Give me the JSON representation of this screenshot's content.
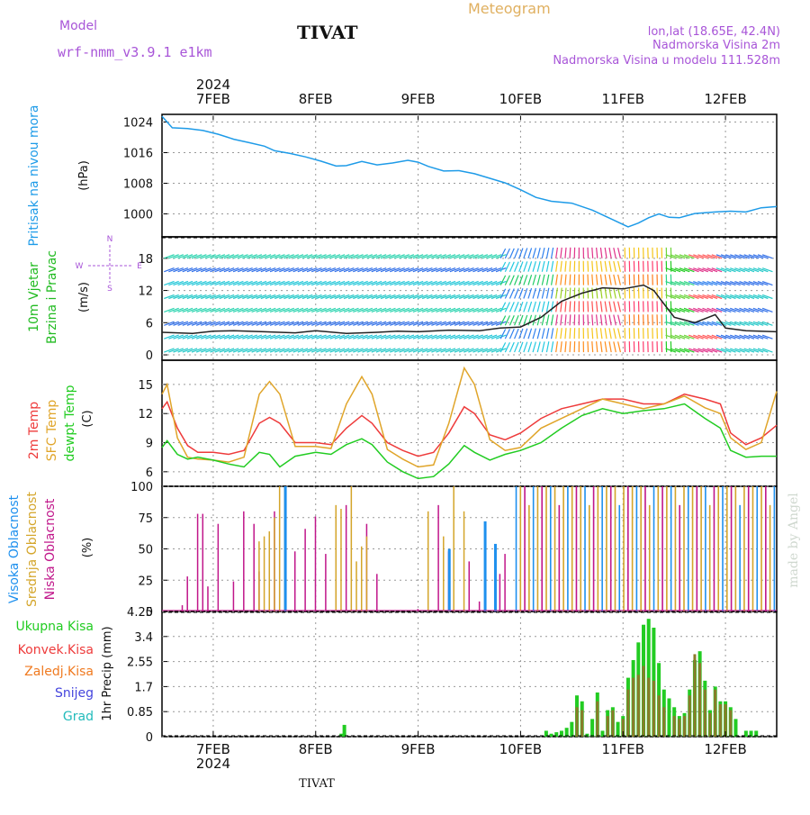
{
  "header": {
    "model_label": "Model",
    "model_name": "wrf-nmm_v3.9.1 e1km",
    "station": "TIVAT",
    "product": "Meteogram",
    "coords": "lon,lat (18.65E, 42.4N)",
    "elevation": "Nadmorska Visina 2m",
    "model_elevation": "Nadmorska Visina u modelu 111.528m"
  },
  "footer": {
    "station": "TIVAT",
    "credit": "made by Angel"
  },
  "colors": {
    "pressure": "#1e9be8",
    "temp2m": "#ee3b3b",
    "sfc": "#e0a52a",
    "dewpt": "#22cc22",
    "high_cloud": "#1e90ee",
    "mid_cloud": "#d4a52a",
    "low_cloud": "#c0168a",
    "total_precip": "#22cc22",
    "conv_precip": "#ee3b3b",
    "frozen_precip": "#f07a20",
    "snow": "#4444dd",
    "hail": "#22bbbb",
    "label_purple": "#a855d8",
    "grid": "#999999"
  },
  "chart_data": [
    {
      "type": "line",
      "panel": "pressure",
      "ylabel_left": "Pritisak na nivou mora",
      "unit": "(hPa)",
      "yticks": [
        "1024",
        "1016",
        "1008",
        "1000"
      ],
      "ylim": [
        994,
        1026
      ],
      "x_day_range": [
        6.5,
        12.5
      ],
      "series": [
        {
          "x": [
            6.5,
            6.6,
            6.75,
            6.9,
            7.05,
            7.2,
            7.35,
            7.5,
            7.6,
            7.75,
            7.9,
            8.05,
            8.2,
            8.3,
            8.45,
            8.6,
            8.75,
            8.9,
            9.0,
            9.1,
            9.25,
            9.4,
            9.55,
            9.7,
            9.85,
            10.0,
            10.15,
            10.3,
            10.5,
            10.7,
            10.9,
            11.05,
            11.15,
            11.25,
            11.35,
            11.45,
            11.55,
            11.7,
            11.9,
            12.05,
            12.2,
            12.35,
            12.5
          ],
          "values": [
            1025.5,
            1022.5,
            1022.3,
            1021.8,
            1020.8,
            1019.5,
            1018.6,
            1017.7,
            1016.5,
            1015.8,
            1014.9,
            1013.8,
            1012.5,
            1012.6,
            1013.7,
            1012.8,
            1013.3,
            1014.0,
            1013.5,
            1012.4,
            1011.2,
            1011.3,
            1010.5,
            1009.3,
            1008.1,
            1006.3,
            1004.3,
            1003.3,
            1002.8,
            1001.0,
            998.5,
            996.6,
            997.6,
            999.0,
            1000.0,
            999.1,
            999.0,
            1000.1,
            1000.5,
            1000.7,
            1000.5,
            1001.6,
            1001.9
          ]
        }
      ]
    },
    {
      "type": "barbs",
      "panel": "wind",
      "ylabel_left": [
        "10m Vjetar",
        "Brzina i Pravac"
      ],
      "unit": "(m/s)",
      "yticks": [
        "18",
        "12",
        "6",
        "0"
      ],
      "ylim": [
        -1,
        22
      ],
      "compass": {
        "N": "N",
        "S": "S",
        "W": "W",
        "E": "E"
      },
      "speed_series": {
        "x": [
          6.5,
          6.8,
          7.0,
          7.2,
          7.5,
          7.8,
          8.0,
          8.3,
          8.6,
          8.8,
          9.0,
          9.3,
          9.6,
          9.8,
          10.0,
          10.2,
          10.4,
          10.6,
          10.8,
          11.0,
          11.2,
          11.3,
          11.4,
          11.5,
          11.7,
          11.9,
          12.0,
          12.2,
          12.5
        ],
        "values": [
          4.2,
          4.0,
          4.4,
          4.5,
          4.3,
          4.1,
          4.5,
          4.0,
          4.2,
          4.4,
          4.3,
          4.6,
          4.5,
          5.0,
          5.2,
          7.0,
          10.0,
          11.5,
          12.5,
          12.3,
          13.0,
          12.0,
          9.5,
          7.0,
          6.0,
          7.5,
          5.0,
          4.5,
          4.3
        ]
      }
    },
    {
      "type": "line",
      "panel": "temperature",
      "ylabel_left": [
        "2m Temp",
        "SFC Temp",
        "dewpt Temp"
      ],
      "unit": "(C)",
      "yticks": [
        "15",
        "12",
        "9",
        "6"
      ],
      "ylim": [
        4.5,
        17.5
      ],
      "series": [
        {
          "name": "2m Temp",
          "x": [
            6.5,
            6.55,
            6.65,
            6.75,
            6.85,
            7.0,
            7.15,
            7.3,
            7.45,
            7.55,
            7.65,
            7.8,
            8.0,
            8.15,
            8.3,
            8.45,
            8.55,
            8.7,
            8.85,
            9.0,
            9.15,
            9.3,
            9.45,
            9.55,
            9.7,
            9.85,
            10.0,
            10.2,
            10.4,
            10.6,
            10.8,
            11.0,
            11.2,
            11.4,
            11.6,
            11.8,
            11.95,
            12.05,
            12.2,
            12.35,
            12.5
          ],
          "values": [
            12.5,
            13.2,
            10.5,
            8.7,
            8.0,
            8.0,
            7.8,
            8.2,
            11.0,
            11.6,
            11.0,
            9.0,
            9.0,
            8.8,
            10.5,
            11.8,
            11.0,
            9.0,
            8.2,
            7.6,
            8.0,
            10.0,
            12.7,
            12.0,
            9.8,
            9.3,
            10.0,
            11.5,
            12.5,
            13.0,
            13.5,
            13.5,
            13.0,
            13.0,
            14.0,
            13.5,
            13.0,
            10.0,
            8.8,
            9.5,
            10.8
          ]
        },
        {
          "name": "SFC Temp",
          "x": [
            6.5,
            6.55,
            6.65,
            6.75,
            6.85,
            7.0,
            7.15,
            7.3,
            7.45,
            7.55,
            7.65,
            7.8,
            8.0,
            8.15,
            8.3,
            8.45,
            8.55,
            8.7,
            8.85,
            9.0,
            9.15,
            9.3,
            9.45,
            9.55,
            9.7,
            9.85,
            10.0,
            10.2,
            10.4,
            10.6,
            10.8,
            11.0,
            11.2,
            11.4,
            11.6,
            11.8,
            11.95,
            12.05,
            12.2,
            12.35,
            12.5
          ],
          "values": [
            14.0,
            15.0,
            9.5,
            7.5,
            7.3,
            7.2,
            7.0,
            7.5,
            14.0,
            15.3,
            14.0,
            8.6,
            8.6,
            8.4,
            13.0,
            15.8,
            14.0,
            8.3,
            7.3,
            6.5,
            6.7,
            11.0,
            16.7,
            15.0,
            9.3,
            8.2,
            8.5,
            10.5,
            11.5,
            12.5,
            13.5,
            13.0,
            12.5,
            13.0,
            13.8,
            12.6,
            12.0,
            9.5,
            8.3,
            9.0,
            14.3
          ]
        },
        {
          "name": "dewpt Temp",
          "x": [
            6.5,
            6.55,
            6.65,
            6.75,
            6.85,
            7.0,
            7.15,
            7.3,
            7.45,
            7.55,
            7.65,
            7.8,
            8.0,
            8.15,
            8.3,
            8.45,
            8.55,
            8.7,
            8.85,
            9.0,
            9.15,
            9.3,
            9.45,
            9.55,
            9.7,
            9.85,
            10.0,
            10.2,
            10.4,
            10.6,
            10.8,
            11.0,
            11.2,
            11.4,
            11.6,
            11.8,
            11.95,
            12.05,
            12.2,
            12.35,
            12.5
          ],
          "values": [
            8.5,
            9.2,
            7.8,
            7.3,
            7.5,
            7.2,
            6.8,
            6.5,
            8.0,
            7.8,
            6.5,
            7.6,
            8.0,
            7.8,
            8.8,
            9.4,
            8.8,
            7.0,
            6.0,
            5.3,
            5.5,
            6.8,
            8.7,
            8.0,
            7.2,
            7.8,
            8.2,
            9.0,
            10.5,
            11.8,
            12.5,
            12.0,
            12.3,
            12.5,
            13.0,
            11.5,
            10.5,
            8.2,
            7.5,
            7.6,
            7.6
          ]
        }
      ]
    },
    {
      "type": "bar",
      "panel": "cloud",
      "ylabel_left": [
        "Visoka Oblacnost",
        "Srednja Oblacnost",
        "Niska Oblacnost"
      ],
      "unit": "(%)",
      "yticks": [
        "100",
        "75",
        "50",
        "25",
        "0"
      ],
      "ylim": [
        0,
        100
      ],
      "series": [
        {
          "name": "Niska Oblacnost",
          "x": [
            6.7,
            6.75,
            6.85,
            6.9,
            6.95,
            7.05,
            7.2,
            7.3,
            7.4,
            7.45,
            7.6,
            7.8,
            7.9,
            8.0,
            8.1,
            8.2,
            8.3,
            8.5,
            8.6,
            9.0,
            9.2,
            9.3,
            9.5,
            9.6,
            9.8,
            9.85
          ],
          "values": [
            5,
            28,
            78,
            78,
            20,
            70,
            24,
            80,
            70,
            32,
            80,
            48,
            66,
            76,
            46,
            24,
            85,
            70,
            30,
            2,
            85,
            48,
            40,
            8,
            30,
            46
          ]
        },
        {
          "name": "Srednja Oblacnost",
          "x": [
            7.45,
            7.5,
            7.55,
            7.6,
            7.65,
            7.7,
            8.2,
            8.25,
            8.35,
            8.4,
            8.45,
            8.5,
            9.1,
            9.25,
            9.35,
            9.45
          ],
          "values": [
            56,
            60,
            64,
            75,
            100,
            100,
            85,
            82,
            100,
            40,
            52,
            60,
            80,
            60,
            100,
            80
          ]
        },
        {
          "name": "Visoka Oblacnost",
          "x": [
            7.7,
            9.3,
            9.65,
            9.75
          ],
          "values": [
            100,
            50,
            72,
            54
          ]
        },
        {
          "name": "cluster_overcast",
          "x_range": [
            9.95,
            12.5
          ],
          "values_hint": "repeated near-100% columns of all three layers"
        }
      ]
    },
    {
      "type": "bar",
      "panel": "precipitation",
      "ylabel_left": [
        "Ukupna Kisa",
        "Konvek.Kisa",
        "Zaledj.Kisa",
        "Snijeg",
        "Grad"
      ],
      "unit": "1hr Precip (mm)",
      "yticks": [
        "4.25",
        "3.4",
        "2.55",
        "1.7",
        "0.85",
        "0"
      ],
      "ylim": [
        0,
        4.25
      ],
      "x_ticks": [
        "7FEB",
        "8FEB",
        "9FEB",
        "10FEB",
        "11FEB",
        "12FEB"
      ],
      "year_label": "2024",
      "series": [
        {
          "name": "Ukupna Kisa",
          "x": [
            8.25,
            8.28,
            10.25,
            10.3,
            10.35,
            10.4,
            10.45,
            10.5,
            10.55,
            10.6,
            10.65,
            10.7,
            10.75,
            10.8,
            10.85,
            10.9,
            10.95,
            11.0,
            11.05,
            11.1,
            11.15,
            11.2,
            11.25,
            11.3,
            11.35,
            11.4,
            11.45,
            11.5,
            11.55,
            11.6,
            11.65,
            11.7,
            11.75,
            11.8,
            11.85,
            11.9,
            11.95,
            12.0,
            12.05,
            12.1,
            12.2,
            12.25,
            12.3
          ],
          "values": [
            0.1,
            0.4,
            0.2,
            0.1,
            0.15,
            0.2,
            0.3,
            0.5,
            1.4,
            1.2,
            0.1,
            0.6,
            1.5,
            0.2,
            0.9,
            1.0,
            0.5,
            0.7,
            2.0,
            2.6,
            3.2,
            3.8,
            4.0,
            3.7,
            2.5,
            1.6,
            1.3,
            1.0,
            0.7,
            0.8,
            1.6,
            2.6,
            2.9,
            1.9,
            0.9,
            1.7,
            1.2,
            1.2,
            1.0,
            0.6,
            0.2,
            0.2,
            0.2
          ]
        },
        {
          "name": "Konvek.Kisa",
          "x": [
            10.55,
            10.6,
            10.75,
            10.85,
            10.9,
            11.0,
            11.05,
            11.1,
            11.15,
            11.2,
            11.25,
            11.3,
            11.35,
            11.4,
            11.5,
            11.55,
            11.6,
            11.65,
            11.7,
            11.75,
            11.8,
            11.85,
            11.9,
            11.95,
            12.0,
            12.05
          ],
          "values": [
            1.0,
            0.9,
            1.2,
            0.7,
            0.9,
            0.6,
            1.6,
            2.0,
            2.1,
            2.4,
            2.0,
            1.9,
            1.4,
            1.0,
            0.7,
            0.6,
            0.7,
            1.4,
            2.8,
            2.5,
            1.6,
            0.8,
            1.6,
            1.1,
            1.1,
            0.9
          ]
        }
      ]
    }
  ]
}
